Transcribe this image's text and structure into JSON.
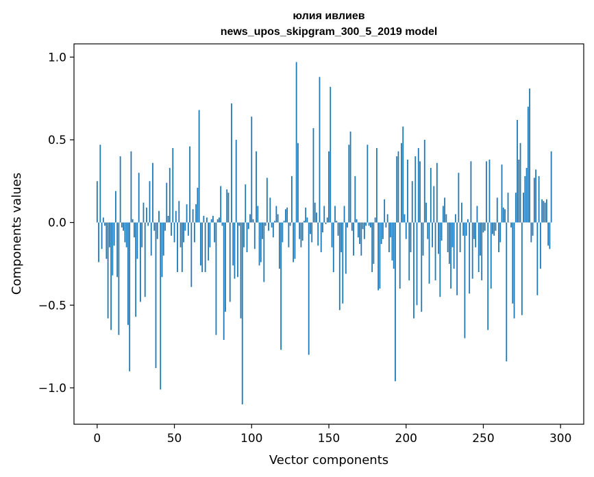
{
  "chart_data": {
    "type": "bar",
    "title": "юлия ивлиев",
    "subtitle": "news_upos_skipgram_300_5_2019 model",
    "xlabel": "Vector components",
    "ylabel": "Components values",
    "xlim": [
      -15,
      315
    ],
    "ylim": [
      -1.22,
      1.08
    ],
    "xticks": [
      0,
      50,
      100,
      150,
      200,
      250,
      300
    ],
    "xtick_labels": [
      "0",
      "50",
      "100",
      "150",
      "200",
      "250",
      "300"
    ],
    "yticks": [
      -1.0,
      -0.5,
      0.0,
      0.5,
      1.0
    ],
    "ytick_labels": [
      "−1.0",
      "−0.5",
      "0.0",
      "0.5",
      "1.0"
    ],
    "bar_color": "#1f77b4",
    "grid": false,
    "values": [
      0.25,
      -0.24,
      0.47,
      -0.16,
      0.03,
      -0.02,
      -0.22,
      -0.58,
      -0.15,
      -0.65,
      -0.32,
      -0.14,
      0.19,
      -0.33,
      -0.68,
      0.4,
      -0.03,
      -0.05,
      -0.12,
      -0.15,
      -0.62,
      -0.9,
      0.43,
      0.02,
      -0.09,
      -0.57,
      -0.22,
      0.3,
      -0.48,
      -0.15,
      0.12,
      -0.45,
      0.09,
      -0.02,
      0.25,
      -0.2,
      0.36,
      -0.05,
      -0.88,
      -0.1,
      0.07,
      -1.01,
      -0.33,
      -0.2,
      -0.05,
      0.24,
      0.04,
      0.33,
      -0.08,
      0.45,
      -0.12,
      0.07,
      -0.3,
      0.13,
      -0.15,
      -0.3,
      -0.12,
      -0.05,
      0.11,
      -0.08,
      0.46,
      -0.39,
      0.08,
      -0.12,
      0.11,
      0.21,
      0.68,
      -0.26,
      -0.3,
      0.04,
      -0.3,
      0.03,
      -0.23,
      -0.15,
      0.02,
      0.04,
      -0.12,
      -0.68,
      0.02,
      0.03,
      0.22,
      -0.02,
      -0.71,
      -0.54,
      0.2,
      0.18,
      -0.48,
      0.72,
      -0.26,
      -0.34,
      0.5,
      -0.33,
      -0.02,
      -0.58,
      -1.1,
      -0.15,
      0.23,
      -0.18,
      -0.04,
      0.05,
      0.64,
      0.02,
      -0.16,
      0.43,
      0.1,
      -0.26,
      -0.24,
      -0.1,
      -0.36,
      -0.02,
      0.27,
      -0.05,
      0.15,
      -0.03,
      -0.09,
      0.01,
      0.1,
      0.05,
      -0.28,
      -0.77,
      -0.12,
      0.01,
      0.08,
      0.09,
      -0.15,
      -0.02,
      0.28,
      -0.24,
      -0.22,
      0.97,
      0.48,
      -0.1,
      -0.15,
      -0.11,
      0.01,
      0.09,
      0.03,
      -0.8,
      -0.07,
      -0.12,
      0.57,
      0.12,
      0.06,
      -0.14,
      0.88,
      -0.18,
      -0.06,
      0.1,
      -0.01,
      0.03,
      0.43,
      0.82,
      -0.15,
      -0.3,
      0.1,
      0.01,
      -0.08,
      -0.53,
      -0.18,
      -0.49,
      0.1,
      -0.31,
      -0.03,
      0.47,
      0.55,
      -0.05,
      -0.2,
      0.28,
      0.02,
      -0.09,
      -0.13,
      -0.2,
      -0.04,
      -0.1,
      -0.02,
      0.47,
      -0.02,
      -0.03,
      -0.3,
      -0.25,
      0.03,
      0.45,
      -0.41,
      -0.4,
      -0.13,
      -0.1,
      0.14,
      -0.03,
      0.05,
      -0.18,
      -0.09,
      -0.23,
      -0.28,
      -0.96,
      0.4,
      0.43,
      -0.4,
      0.48,
      0.58,
      0.05,
      -0.1,
      0.38,
      -0.35,
      -0.18,
      0.25,
      -0.58,
      0.4,
      -0.5,
      0.45,
      0.37,
      -0.54,
      -0.2,
      0.5,
      0.12,
      -0.1,
      -0.37,
      0.33,
      -0.15,
      0.22,
      -0.35,
      0.36,
      -0.19,
      -0.45,
      -0.11,
      0.1,
      0.15,
      0.05,
      -0.18,
      -0.25,
      -0.4,
      -0.15,
      -0.28,
      0.05,
      -0.44,
      0.3,
      -0.18,
      0.12,
      -0.08,
      -0.7,
      -0.08,
      0.02,
      -0.43,
      0.37,
      -0.34,
      -0.1,
      -0.15,
      0.1,
      -0.3,
      -0.2,
      -0.35,
      -0.06,
      -0.05,
      0.37,
      -0.65,
      0.38,
      -0.4,
      -0.07,
      -0.08,
      -0.05,
      0.15,
      -0.18,
      -0.12,
      0.35,
      0.09,
      0.08,
      -0.84,
      0.18,
      0.0,
      -0.03,
      -0.49,
      -0.58,
      0.18,
      0.62,
      0.38,
      0.48,
      -0.56,
      0.18,
      0.28,
      0.33,
      0.7,
      0.81,
      -0.12,
      -0.08,
      0.27,
      0.32,
      -0.44,
      0.28,
      -0.28,
      0.14,
      0.13,
      0.12,
      0.14,
      -0.14,
      -0.16,
      0.43
    ]
  }
}
